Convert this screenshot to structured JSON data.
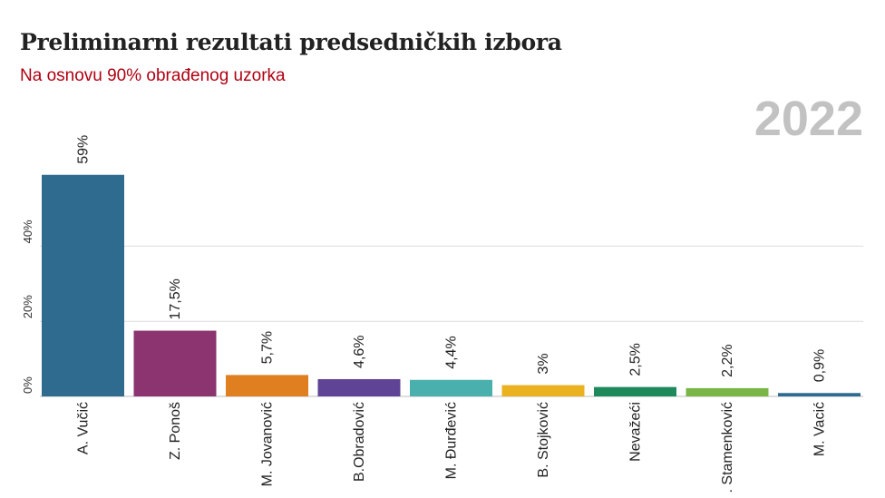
{
  "header": {
    "title": "Preliminarni rezultati predsedničkih izbora",
    "subtitle": "Na osnovu 90% obrađenog uzorka",
    "year": "2022"
  },
  "chart_data": {
    "type": "bar",
    "title": "Preliminarni rezultati predsedničkih izbora",
    "subtitle": "Na osnovu 90% obrađenog uzorka",
    "xlabel": "",
    "ylabel": "",
    "ylim": [
      0,
      60
    ],
    "yticks": [
      0,
      20,
      40
    ],
    "ytick_labels": [
      "0%",
      "20%",
      "40%"
    ],
    "grid": true,
    "categories": [
      "A. Vučić",
      "Z. Ponoš",
      "M. Jovanović",
      "B.Obradović",
      "M. Đurđević",
      "B. Stojković",
      "Nevažeći",
      ". Stamenković",
      "M. Vacić"
    ],
    "values": [
      59,
      17.5,
      5.7,
      4.6,
      4.4,
      3,
      2.5,
      2.2,
      0.9
    ],
    "value_labels": [
      "59%",
      "17,5%",
      "5,7%",
      "4,6%",
      "4,4%",
      "3%",
      "2,5%",
      "2,2%",
      "0,9%"
    ],
    "colors": [
      "#2f6a8f",
      "#8b3470",
      "#e07f1f",
      "#5f4496",
      "#4ab0ad",
      "#eab221",
      "#1e8a5c",
      "#7ab548",
      "#2f6a8f"
    ]
  }
}
